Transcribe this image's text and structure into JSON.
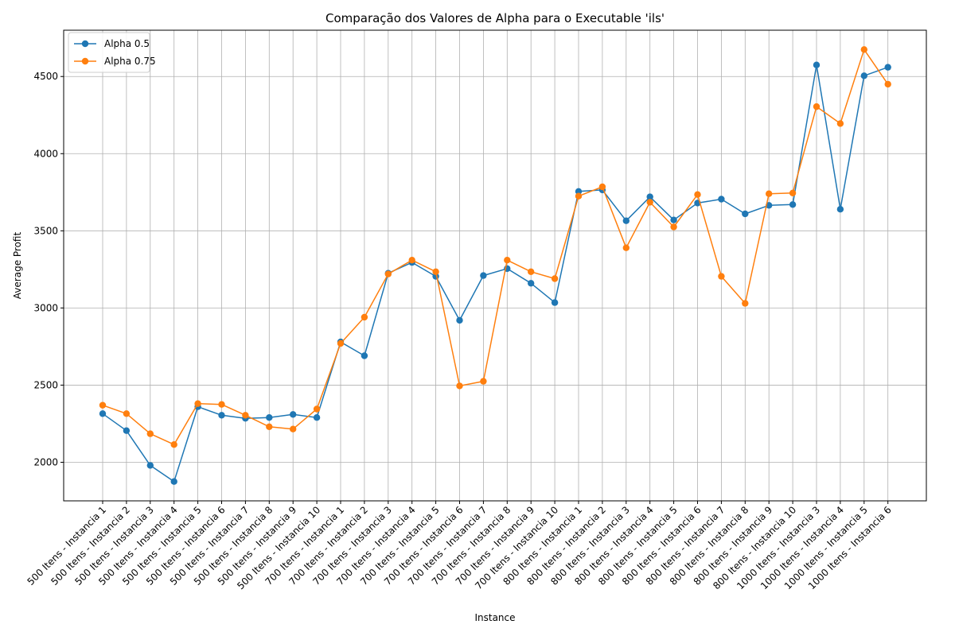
{
  "chart_data": {
    "type": "line",
    "title": "Comparação dos Valores de Alpha para o Executable 'ils'",
    "xlabel": "Instance",
    "ylabel": "Average Profit",
    "ylim": [
      1750,
      4800
    ],
    "yticks": [
      2000,
      2500,
      3000,
      3500,
      4000,
      4500
    ],
    "grid": true,
    "legend_position": "top-left",
    "categories": [
      "500 Itens - Instancia 1",
      "500 Itens - Instancia 2",
      "500 Itens - Instancia 3",
      "500 Itens - Instancia 4",
      "500 Itens - Instancia 5",
      "500 Itens - Instancia 6",
      "500 Itens - Instancia 7",
      "500 Itens - Instancia 8",
      "500 Itens - Instancia 9",
      "500 Itens - Instancia 10",
      "700 Itens - Instancia 1",
      "700 Itens - Instancia 2",
      "700 Itens - Instancia 3",
      "700 Itens - Instancia 4",
      "700 Itens - Instancia 5",
      "700 Itens - Instancia 6",
      "700 Itens - Instancia 7",
      "700 Itens - Instancia 8",
      "700 Itens - Instancia 9",
      "700 Itens - Instancia 10",
      "800 Itens - Instancia 1",
      "800 Itens - Instancia 2",
      "800 Itens - Instancia 3",
      "800 Itens - Instancia 4",
      "800 Itens - Instancia 5",
      "800 Itens - Instancia 6",
      "800 Itens - Instancia 7",
      "800 Itens - Instancia 8",
      "800 Itens - Instancia 9",
      "800 Itens - Instancia 10",
      "1000 Itens - Instancia 3",
      "1000 Itens - Instancia 4",
      "1000 Itens - Instancia 5",
      "1000 Itens - Instancia 6"
    ],
    "series": [
      {
        "name": "Alpha 0.5",
        "color": "#1f77b4",
        "values": [
          2315,
          2205,
          1980,
          1875,
          2360,
          2305,
          2285,
          2290,
          2310,
          2290,
          2780,
          2690,
          3225,
          3295,
          3205,
          2920,
          3210,
          3255,
          3160,
          3035,
          3755,
          3765,
          3565,
          3720,
          3570,
          3680,
          3705,
          3610,
          3665,
          3670,
          4575,
          3640,
          4505,
          4560
        ]
      },
      {
        "name": "Alpha 0.75",
        "color": "#ff7f0e",
        "values": [
          2370,
          2315,
          2185,
          2115,
          2380,
          2375,
          2305,
          2230,
          2215,
          2345,
          2770,
          2940,
          3220,
          3310,
          3235,
          2495,
          2525,
          3310,
          3235,
          3190,
          3725,
          3785,
          3390,
          3685,
          3525,
          3735,
          3205,
          3030,
          3740,
          3745,
          4305,
          4195,
          4675,
          4450
        ]
      }
    ]
  }
}
